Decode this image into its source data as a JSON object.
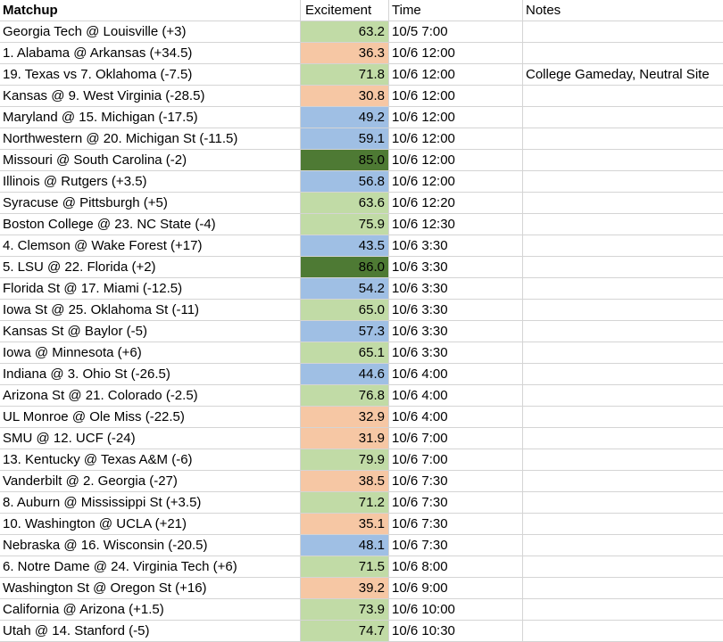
{
  "header": {
    "matchup": "Matchup",
    "excitement": "Excitement",
    "time": "Time",
    "notes": "Notes"
  },
  "colors": {
    "high": "#c1dba6",
    "low": "#f6c7a4",
    "mid": "#9fbfe4",
    "top": "#4e7a34"
  },
  "rows": [
    {
      "matchup": "Georgia Tech @ Louisville (+3)",
      "excitement": "63.2",
      "level": "high",
      "time": "10/5 7:00",
      "notes": ""
    },
    {
      "matchup": "1. Alabama @ Arkansas (+34.5)",
      "excitement": "36.3",
      "level": "low",
      "time": "10/6 12:00",
      "notes": ""
    },
    {
      "matchup": "19. Texas vs 7. Oklahoma (-7.5)",
      "excitement": "71.8",
      "level": "high",
      "time": "10/6 12:00",
      "notes": "College Gameday, Neutral Site"
    },
    {
      "matchup": "Kansas @ 9. West Virginia (-28.5)",
      "excitement": "30.8",
      "level": "low",
      "time": "10/6 12:00",
      "notes": ""
    },
    {
      "matchup": "Maryland @ 15. Michigan (-17.5)",
      "excitement": "49.2",
      "level": "mid",
      "time": "10/6 12:00",
      "notes": ""
    },
    {
      "matchup": "Northwestern @ 20. Michigan St (-11.5)",
      "excitement": "59.1",
      "level": "mid",
      "time": "10/6 12:00",
      "notes": ""
    },
    {
      "matchup": "Missouri @ South Carolina (-2)",
      "excitement": "85.0",
      "level": "top",
      "time": "10/6 12:00",
      "notes": ""
    },
    {
      "matchup": "Illinois @ Rutgers (+3.5)",
      "excitement": "56.8",
      "level": "mid",
      "time": "10/6 12:00",
      "notes": ""
    },
    {
      "matchup": "Syracuse @ Pittsburgh (+5)",
      "excitement": "63.6",
      "level": "high",
      "time": "10/6 12:20",
      "notes": ""
    },
    {
      "matchup": "Boston College @ 23. NC State (-4)",
      "excitement": "75.9",
      "level": "high",
      "time": "10/6 12:30",
      "notes": ""
    },
    {
      "matchup": "4. Clemson @ Wake Forest (+17)",
      "excitement": "43.5",
      "level": "mid",
      "time": "10/6 3:30",
      "notes": ""
    },
    {
      "matchup": "5. LSU @ 22. Florida (+2)",
      "excitement": "86.0",
      "level": "top",
      "time": "10/6 3:30",
      "notes": ""
    },
    {
      "matchup": "Florida St @ 17. Miami (-12.5)",
      "excitement": "54.2",
      "level": "mid",
      "time": "10/6 3:30",
      "notes": ""
    },
    {
      "matchup": "Iowa St @ 25. Oklahoma St (-11)",
      "excitement": "65.0",
      "level": "high",
      "time": "10/6 3:30",
      "notes": ""
    },
    {
      "matchup": "Kansas St @ Baylor (-5)",
      "excitement": "57.3",
      "level": "mid",
      "time": "10/6 3:30",
      "notes": ""
    },
    {
      "matchup": "Iowa @ Minnesota (+6)",
      "excitement": "65.1",
      "level": "high",
      "time": "10/6 3:30",
      "notes": ""
    },
    {
      "matchup": "Indiana @ 3. Ohio St (-26.5)",
      "excitement": "44.6",
      "level": "mid",
      "time": "10/6 4:00",
      "notes": ""
    },
    {
      "matchup": "Arizona St @ 21. Colorado (-2.5)",
      "excitement": "76.8",
      "level": "high",
      "time": "10/6 4:00",
      "notes": ""
    },
    {
      "matchup": "UL Monroe @ Ole Miss (-22.5)",
      "excitement": "32.9",
      "level": "low",
      "time": "10/6 4:00",
      "notes": ""
    },
    {
      "matchup": "SMU @ 12. UCF (-24)",
      "excitement": "31.9",
      "level": "low",
      "time": "10/6 7:00",
      "notes": ""
    },
    {
      "matchup": "13. Kentucky @ Texas A&M (-6)",
      "excitement": "79.9",
      "level": "high",
      "time": "10/6 7:00",
      "notes": ""
    },
    {
      "matchup": "Vanderbilt @ 2. Georgia (-27)",
      "excitement": "38.5",
      "level": "low",
      "time": "10/6 7:30",
      "notes": ""
    },
    {
      "matchup": "8. Auburn @ Mississippi St (+3.5)",
      "excitement": "71.2",
      "level": "high",
      "time": "10/6 7:30",
      "notes": ""
    },
    {
      "matchup": "10. Washington @ UCLA (+21)",
      "excitement": "35.1",
      "level": "low",
      "time": "10/6 7:30",
      "notes": ""
    },
    {
      "matchup": "Nebraska @ 16. Wisconsin (-20.5)",
      "excitement": "48.1",
      "level": "mid",
      "time": "10/6 7:30",
      "notes": ""
    },
    {
      "matchup": "6. Notre Dame @ 24. Virginia Tech (+6)",
      "excitement": "71.5",
      "level": "high",
      "time": "10/6 8:00",
      "notes": ""
    },
    {
      "matchup": "Washington St @ Oregon St (+16)",
      "excitement": "39.2",
      "level": "low",
      "time": "10/6 9:00",
      "notes": ""
    },
    {
      "matchup": "California @ Arizona (+1.5)",
      "excitement": "73.9",
      "level": "high",
      "time": "10/6 10:00",
      "notes": ""
    },
    {
      "matchup": "Utah @ 14. Stanford (-5)",
      "excitement": "74.7",
      "level": "high",
      "time": "10/6 10:30",
      "notes": ""
    }
  ]
}
